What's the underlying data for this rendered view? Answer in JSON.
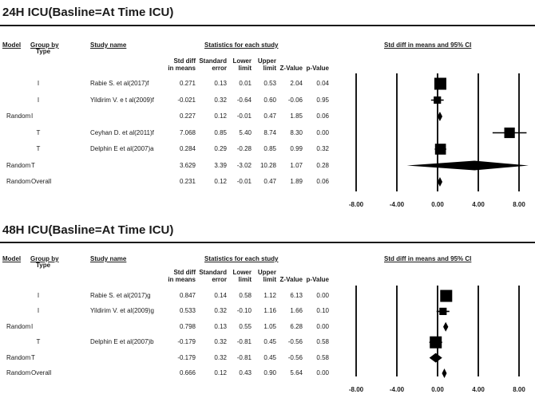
{
  "panels": [
    {
      "title": "24H ICU(Basline=At Time ICU)",
      "headers": {
        "model": "Model",
        "group_by": "Group by",
        "type": "Type",
        "study_name": "Study name",
        "stats": "Statistics for each study",
        "plot": "Std diff in means and 95% CI",
        "std_diff_1": "Std diff",
        "std_diff_2": "in means",
        "se_1": "Standard",
        "se_2": "error",
        "lower_1": "Lower",
        "lower_2": "limit",
        "upper_1": "Upper",
        "upper_2": "limit",
        "z": "Z-Value",
        "p": "p-Value"
      },
      "rows": [
        {
          "model": "",
          "group": "I",
          "study": "Rabie S. et al(2017)f",
          "d": "0.271",
          "se": "0.13",
          "lo": "0.01",
          "hi": "0.53",
          "z": "2.04",
          "p": "0.04"
        },
        {
          "model": "",
          "group": "I",
          "study": "Yildirim V. e t al(2009)f",
          "d": "-0.021",
          "se": "0.32",
          "lo": "-0.64",
          "hi": "0.60",
          "z": "-0.06",
          "p": "0.95"
        },
        {
          "model": "Random",
          "group": "I",
          "study": "",
          "d": "0.227",
          "se": "0.12",
          "lo": "-0.01",
          "hi": "0.47",
          "z": "1.85",
          "p": "0.06"
        },
        {
          "model": "",
          "group": "T",
          "study": "Ceyhan D. et al(2011)f",
          "d": "7.068",
          "se": "0.85",
          "lo": "5.40",
          "hi": "8.74",
          "z": "8.30",
          "p": "0.00"
        },
        {
          "model": "",
          "group": "T",
          "study": "Delphin E et al(2007)a",
          "d": "0.284",
          "se": "0.29",
          "lo": "-0.28",
          "hi": "0.85",
          "z": "0.99",
          "p": "0.32"
        },
        {
          "model": "Random",
          "group": "T",
          "study": "",
          "d": "3.629",
          "se": "3.39",
          "lo": "-3.02",
          "hi": "10.28",
          "z": "1.07",
          "p": "0.28"
        },
        {
          "model": "Random",
          "group": "Overall",
          "study": "",
          "d": "0.231",
          "se": "0.12",
          "lo": "-0.01",
          "hi": "0.47",
          "z": "1.89",
          "p": "0.06"
        }
      ],
      "ticks": [
        "-8.00",
        "-4.00",
        "0.00",
        "4.00",
        "8.00"
      ]
    },
    {
      "title": "48H ICU(Basline=At Time ICU)",
      "headers": {
        "model": "Model",
        "group_by": "Group by",
        "type": "Type",
        "study_name": "Study name",
        "stats": "Statistics for each study",
        "plot": "Std diff in means and 95% CI",
        "std_diff_1": "Std diff",
        "std_diff_2": "in means",
        "se_1": "Standard",
        "se_2": "error",
        "lower_1": "Lower",
        "lower_2": "limit",
        "upper_1": "Upper",
        "upper_2": "limit",
        "z": "Z-Value",
        "p": "p-Value"
      },
      "rows": [
        {
          "model": "",
          "group": "I",
          "study": "Rabie S. et al(2017)g",
          "d": "0.847",
          "se": "0.14",
          "lo": "0.58",
          "hi": "1.12",
          "z": "6.13",
          "p": "0.00"
        },
        {
          "model": "",
          "group": "I",
          "study": "Yildirim V. et al(2009)g",
          "d": "0.533",
          "se": "0.32",
          "lo": "-0.10",
          "hi": "1.16",
          "z": "1.66",
          "p": "0.10"
        },
        {
          "model": "Random",
          "group": "I",
          "study": "",
          "d": "0.798",
          "se": "0.13",
          "lo": "0.55",
          "hi": "1.05",
          "z": "6.28",
          "p": "0.00"
        },
        {
          "model": "",
          "group": "T",
          "study": "Delphin E et al(2007)b",
          "d": "-0.179",
          "se": "0.32",
          "lo": "-0.81",
          "hi": "0.45",
          "z": "-0.56",
          "p": "0.58"
        },
        {
          "model": "Random",
          "group": "T",
          "study": "",
          "d": "-0.179",
          "se": "0.32",
          "lo": "-0.81",
          "hi": "0.45",
          "z": "-0.56",
          "p": "0.58"
        },
        {
          "model": "Random",
          "group": "Overall",
          "study": "",
          "d": "0.666",
          "se": "0.12",
          "lo": "0.43",
          "hi": "0.90",
          "z": "5.64",
          "p": "0.00"
        }
      ],
      "ticks": [
        "-8.00",
        "-4.00",
        "0.00",
        "4.00",
        "8.00"
      ]
    }
  ],
  "chart_data": [
    {
      "type": "forest",
      "title": "24H ICU(Basline=At Time ICU)",
      "xlabel": "Std diff in means and 95% CI",
      "xlim": [
        -8,
        8
      ],
      "xticks": [
        -8,
        -4,
        0,
        4,
        8
      ],
      "rows": [
        {
          "label": "Rabie S. et al(2017)f",
          "kind": "study",
          "estimate": 0.271,
          "lower": 0.01,
          "upper": 0.53,
          "weight": 1.0
        },
        {
          "label": "Yildirim V. e t al(2009)f",
          "kind": "study",
          "estimate": -0.021,
          "lower": -0.64,
          "upper": 0.6,
          "weight": 0.35
        },
        {
          "label": "Random I",
          "kind": "summary",
          "estimate": 0.227,
          "lower": -0.01,
          "upper": 0.47
        },
        {
          "label": "Ceyhan D. et al(2011)f",
          "kind": "study",
          "estimate": 7.068,
          "lower": 5.4,
          "upper": 8.74,
          "weight": 0.8
        },
        {
          "label": "Delphin E et al(2007)a",
          "kind": "study",
          "estimate": 0.284,
          "lower": -0.28,
          "upper": 0.85,
          "weight": 0.85
        },
        {
          "label": "Random T",
          "kind": "summary",
          "estimate": 3.629,
          "lower": -3.02,
          "upper": 10.28
        },
        {
          "label": "Random Overall",
          "kind": "summary",
          "estimate": 0.231,
          "lower": -0.01,
          "upper": 0.47
        }
      ]
    },
    {
      "type": "forest",
      "title": "48H ICU(Basline=At Time ICU)",
      "xlabel": "Std diff in means and 95% CI",
      "xlim": [
        -8,
        8
      ],
      "xticks": [
        -8,
        -4,
        0,
        4,
        8
      ],
      "rows": [
        {
          "label": "Rabie S. et al(2017)g",
          "kind": "study",
          "estimate": 0.847,
          "lower": 0.58,
          "upper": 1.12,
          "weight": 1.0
        },
        {
          "label": "Yildirim V. et al(2009)g",
          "kind": "study",
          "estimate": 0.533,
          "lower": -0.1,
          "upper": 1.16,
          "weight": 0.35
        },
        {
          "label": "Random I",
          "kind": "summary",
          "estimate": 0.798,
          "lower": 0.55,
          "upper": 1.05
        },
        {
          "label": "Delphin E et al(2007)b",
          "kind": "study",
          "estimate": -0.179,
          "lower": -0.81,
          "upper": 0.45,
          "weight": 1.0
        },
        {
          "label": "Random T",
          "kind": "summary",
          "estimate": -0.179,
          "lower": -0.81,
          "upper": 0.45
        },
        {
          "label": "Random Overall",
          "kind": "summary",
          "estimate": 0.666,
          "lower": 0.43,
          "upper": 0.9
        }
      ]
    }
  ]
}
